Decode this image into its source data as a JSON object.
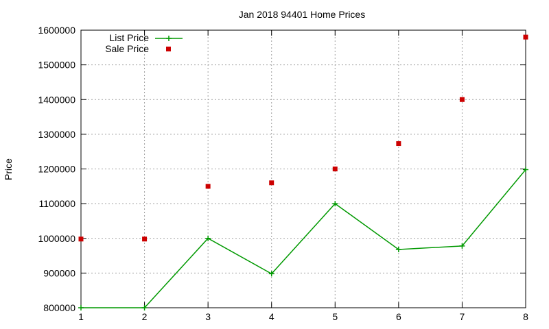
{
  "chart_data": {
    "type": "line",
    "title": "Jan 2018 94401 Home Prices",
    "xlabel": "",
    "ylabel": "Price",
    "xlim": [
      1,
      8
    ],
    "ylim": [
      800000,
      1600000
    ],
    "x_ticks": [
      "1",
      "2",
      "3",
      "4",
      "5",
      "6",
      "7",
      "8"
    ],
    "y_ticks": [
      "800000",
      "900000",
      "1000000",
      "1100000",
      "1200000",
      "1300000",
      "1400000",
      "1500000",
      "1600000"
    ],
    "grid": true,
    "legend_position": "top-left",
    "series": [
      {
        "name": "List Price",
        "type": "line",
        "marker": "plus",
        "color": "#009900",
        "x": [
          1,
          2,
          3,
          4,
          5,
          6,
          7,
          8
        ],
        "values": [
          800000,
          800000,
          1000000,
          898000,
          1100000,
          968000,
          978000,
          1198000
        ]
      },
      {
        "name": "Sale Price",
        "type": "scatter",
        "marker": "square",
        "color": "#cc0000",
        "x": [
          1,
          2,
          3,
          4,
          5,
          6,
          7,
          8
        ],
        "values": [
          998000,
          998000,
          1150000,
          1160000,
          1200000,
          1273000,
          1400000,
          1580000
        ]
      }
    ]
  }
}
